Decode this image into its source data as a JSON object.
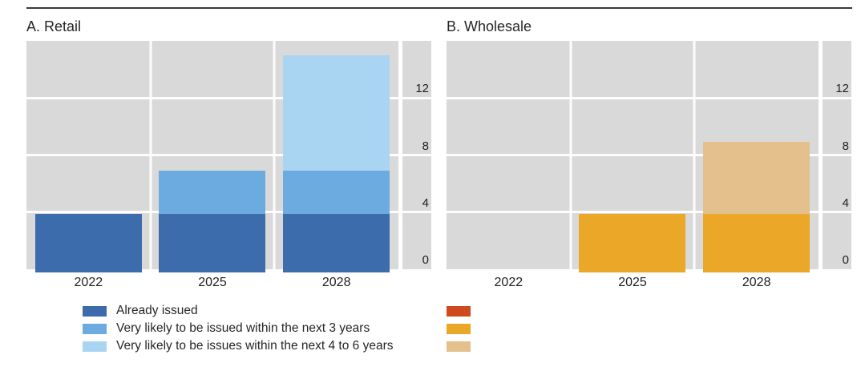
{
  "figure": {
    "background": "#ffffff",
    "rule_color": "#3a3a3a",
    "plot_bg": "#d9d9d9",
    "gridline_color": "#fdfdfd",
    "text_color": "#262626"
  },
  "chart_data": [
    {
      "type": "bar",
      "stacked": true,
      "title": "A. Retail",
      "categories": [
        "2022",
        "2025",
        "2028"
      ],
      "series": [
        {
          "name": "Already issued",
          "color": "#3c6cac",
          "values": [
            3.9,
            3.9,
            3.9
          ]
        },
        {
          "name": "Very likely to be issued within the next 3 years",
          "color": "#6cabdf",
          "values": [
            0,
            3.0,
            3.0
          ]
        },
        {
          "name": "Very likely to be issues within the next 4 to 6 years",
          "color": "#a9d5f2",
          "values": [
            0,
            0,
            8.1
          ]
        }
      ],
      "stack_totals": [
        3.9,
        6.9,
        15.0
      ],
      "ylim": [
        0,
        16
      ],
      "yticks": [
        0,
        4,
        8,
        12
      ],
      "yticks_side": "right",
      "grid": true
    },
    {
      "type": "bar",
      "stacked": true,
      "title": "B. Wholesale",
      "categories": [
        "2022",
        "2025",
        "2028"
      ],
      "series": [
        {
          "name": "Already issued",
          "color": "#cd4b1e",
          "values": [
            0,
            0,
            0
          ]
        },
        {
          "name": "Very likely to be issued within the next 3 years",
          "color": "#eba728",
          "values": [
            0,
            3.9,
            3.9
          ]
        },
        {
          "name": "Very likely to be issues within the next 4 to 6 years",
          "color": "#e3c08c",
          "values": [
            0,
            0,
            5.0
          ]
        }
      ],
      "stack_totals": [
        0,
        3.9,
        8.9
      ],
      "ylim": [
        0,
        16
      ],
      "yticks": [
        0,
        4,
        8,
        12
      ],
      "yticks_side": "right",
      "grid": true
    }
  ],
  "legend": {
    "left": {
      "items": [
        {
          "label": "Already issued",
          "color": "#3c6cac"
        },
        {
          "label": "Very likely to be issued within the next 3 years",
          "color": "#6cabdf"
        },
        {
          "label": "Very likely to be issues within the next 4 to 6 years",
          "color": "#a9d5f2"
        }
      ]
    },
    "right": {
      "items": [
        {
          "label": "",
          "color": "#cd4b1e"
        },
        {
          "label": "",
          "color": "#eba728"
        },
        {
          "label": "",
          "color": "#e3c08c"
        }
      ]
    }
  }
}
